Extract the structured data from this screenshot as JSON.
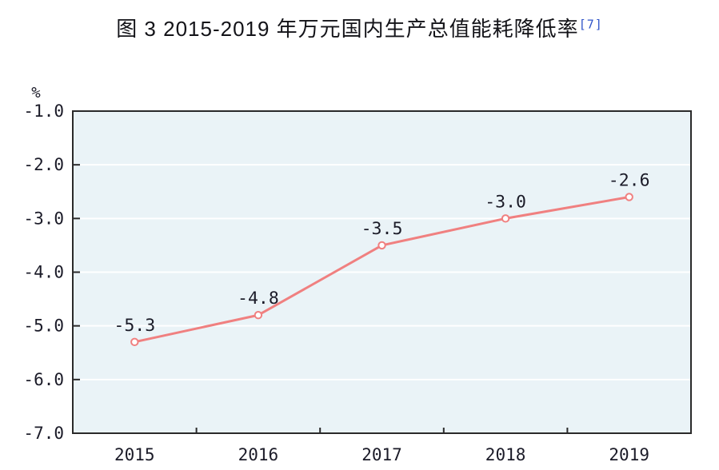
{
  "figure": {
    "title": "图 3  2015-2019 年万元国内生产总值能耗降低率",
    "title_superscript": "[7]"
  },
  "chart_data": {
    "type": "line",
    "title": "图 3  2015-2019 年万元国内生产总值能耗降低率[7]",
    "unit_label": "%",
    "categories": [
      "2015",
      "2016",
      "2017",
      "2018",
      "2019"
    ],
    "series": [
      {
        "name": "万元国内生产总值能耗降低率",
        "values": [
          -5.3,
          -4.8,
          -3.5,
          -3.0,
          -2.6
        ]
      }
    ],
    "data_labels": [
      "-5.3",
      "-4.8",
      "-3.5",
      "-3.0",
      "-2.6"
    ],
    "ylim": [
      -7.0,
      -1.0
    ],
    "ytick_step": 1.0,
    "ytick_labels": [
      "-1.0",
      "-2.0",
      "-3.0",
      "-4.0",
      "-5.0",
      "-6.0",
      "-7.0"
    ],
    "grid": true,
    "legend": "none",
    "colors": {
      "line": "#f08080",
      "marker_fill": "#ffffff",
      "plot_background": "#eaf3f7",
      "gridline": "#ffffff",
      "axis": "#2a2a2a",
      "text": "#1b1b28",
      "superscript": "#2f54c9"
    }
  }
}
